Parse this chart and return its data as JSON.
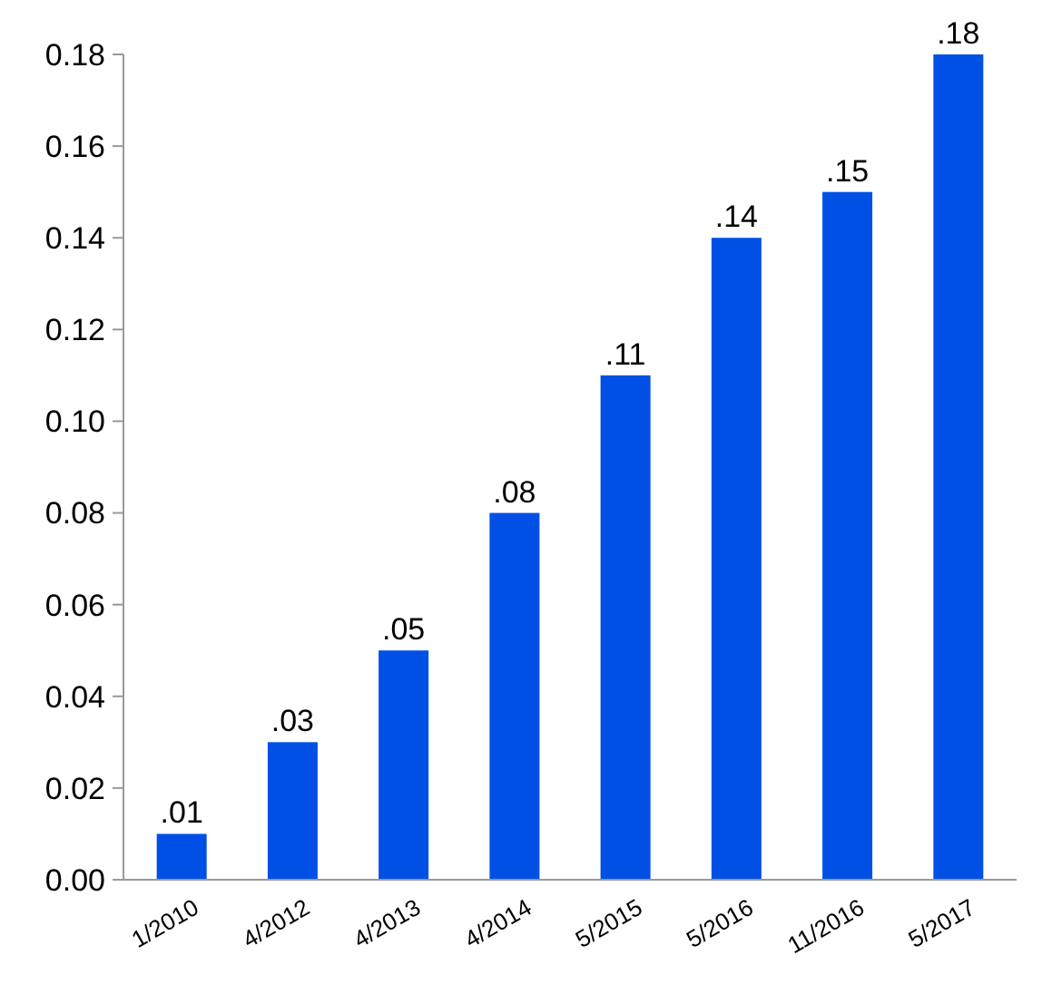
{
  "chart_data": {
    "type": "bar",
    "categories": [
      "1/2010",
      "4/2012",
      "4/2013",
      "4/2014",
      "5/2015",
      "5/2016",
      "11/2016",
      "5/2017"
    ],
    "values": [
      0.01,
      0.03,
      0.05,
      0.08,
      0.11,
      0.14,
      0.15,
      0.18
    ],
    "value_labels": [
      ".01",
      ".03",
      ".05",
      ".08",
      ".11",
      ".14",
      ".15",
      ".18"
    ],
    "color": "#0050e6",
    "ylim": [
      0,
      0.18
    ],
    "yticks": [
      {
        "value": 0,
        "label": "0.00"
      },
      {
        "value": 0.02,
        "label": "0.02"
      },
      {
        "value": 0.04,
        "label": "0.04"
      },
      {
        "value": 0.06,
        "label": "0.06"
      },
      {
        "value": 0.08,
        "label": "0.08"
      },
      {
        "value": 0.1,
        "label": "0.10"
      },
      {
        "value": 0.12,
        "label": "0.12"
      },
      {
        "value": 0.14,
        "label": "0.14"
      },
      {
        "value": 0.16,
        "label": "0.16"
      },
      {
        "value": 0.18,
        "label": "0.18"
      }
    ],
    "grid": false
  }
}
